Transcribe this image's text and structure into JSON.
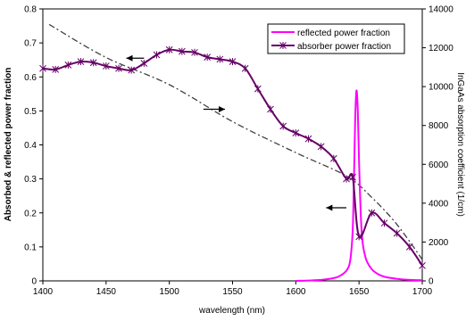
{
  "chart_data": {
    "type": "line",
    "xlabel": "wavelength (nm)",
    "ylabel_left": "Absorbed &  reflected power fraction",
    "ylabel_right": "InGaAs absorption coefficient (1/cm)",
    "xlim": [
      1400,
      1700
    ],
    "ylim_left": [
      0,
      0.8
    ],
    "ylim_right": [
      0,
      14000
    ],
    "x_ticks": [
      "1400",
      "1450",
      "1500",
      "1550",
      "1600",
      "1650",
      "1700"
    ],
    "y_ticks_left": [
      "0",
      "0.1",
      "0.2",
      "0.3",
      "0.4",
      "0.5",
      "0.6",
      "0.7",
      "0.8"
    ],
    "y_ticks_right": [
      "0",
      "2000",
      "4000",
      "6000",
      "8000",
      "10000",
      "12000",
      "14000"
    ],
    "legend_position": "top-right",
    "colors": {
      "reflected": "#ff00ff",
      "absorber": "#660066",
      "absorption": "#404040"
    },
    "series": [
      {
        "name": "reflected power fraction",
        "axis": "left",
        "style": "solid",
        "x": [
          1600,
          1610,
          1620,
          1630,
          1635,
          1640,
          1643,
          1645,
          1646,
          1647,
          1648,
          1649,
          1650,
          1652,
          1655,
          1660,
          1665,
          1670,
          1680,
          1690,
          1700
        ],
        "y": [
          0,
          0.001,
          0.003,
          0.008,
          0.015,
          0.03,
          0.06,
          0.15,
          0.3,
          0.48,
          0.56,
          0.5,
          0.35,
          0.15,
          0.07,
          0.035,
          0.02,
          0.012,
          0.006,
          0.003,
          0.002
        ]
      },
      {
        "name": "absorber power fraction",
        "axis": "left",
        "style": "solid-markers",
        "x": [
          1400,
          1410,
          1420,
          1430,
          1440,
          1450,
          1460,
          1470,
          1480,
          1490,
          1500,
          1510,
          1520,
          1530,
          1540,
          1550,
          1560,
          1570,
          1580,
          1590,
          1600,
          1610,
          1620,
          1630,
          1640,
          1645,
          1650,
          1660,
          1670,
          1680,
          1690,
          1700
        ],
        "y": [
          0.625,
          0.622,
          0.635,
          0.645,
          0.642,
          0.632,
          0.625,
          0.62,
          0.64,
          0.665,
          0.68,
          0.675,
          0.672,
          0.658,
          0.652,
          0.645,
          0.625,
          0.565,
          0.505,
          0.455,
          0.435,
          0.418,
          0.395,
          0.36,
          0.3,
          0.305,
          0.13,
          0.2,
          0.17,
          0.14,
          0.1,
          0.045
        ]
      },
      {
        "name": "",
        "axis": "right",
        "style": "dash-dot",
        "x": [
          1405,
          1450,
          1500,
          1550,
          1600,
          1640,
          1660,
          1680,
          1700
        ],
        "y": [
          13200,
          11500,
          10100,
          8200,
          6600,
          5400,
          4300,
          2900,
          1100
        ]
      }
    ]
  }
}
